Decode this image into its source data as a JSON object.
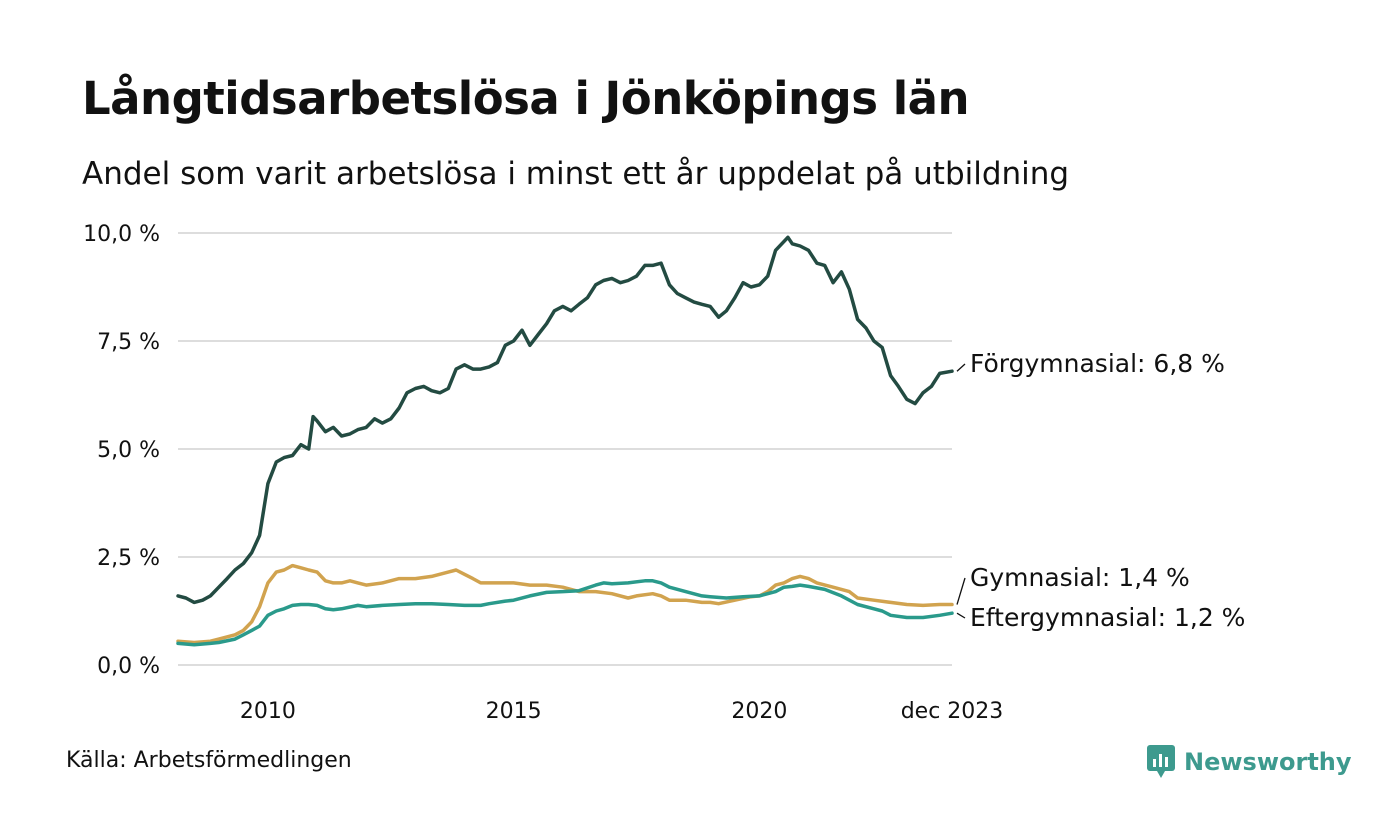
{
  "header": {
    "title": "Långtidsarbetslösa i Jönköpings län",
    "subtitle": "Andel som varit arbetslösa i minst ett år uppdelat på utbildning"
  },
  "footer": {
    "source": "Källa: Arbetsförmedlingen",
    "brand": "Newsworthy"
  },
  "colors": {
    "forgymnasial": "#234b42",
    "gymnasial": "#d1a34f",
    "eftergymnasial": "#2a9a8b",
    "grid": "#dddddd",
    "brand": "#3d9a8e"
  },
  "chart_data": {
    "type": "line",
    "title": "Långtidsarbetslösa i Jönköpings län",
    "xlabel": "",
    "ylabel": "",
    "ylim": [
      0,
      10
    ],
    "xlim": [
      2008.17,
      2023.92
    ],
    "y_ticks": [
      {
        "value": 0,
        "label": "0,0 %"
      },
      {
        "value": 2.5,
        "label": "2,5 %"
      },
      {
        "value": 5,
        "label": "5,0 %"
      },
      {
        "value": 7.5,
        "label": "7,5 %"
      },
      {
        "value": 10,
        "label": "10,0 %"
      }
    ],
    "x_ticks": [
      {
        "value": 2010,
        "label": "2010"
      },
      {
        "value": 2015,
        "label": "2015"
      },
      {
        "value": 2020,
        "label": "2020"
      },
      {
        "value": 2023.92,
        "label": "dec 2023"
      }
    ],
    "grid": true,
    "series": [
      {
        "name": "Förgymnasial",
        "end_label": "Förgymnasial: 6,8 %",
        "points": [
          [
            2008.17,
            1.6
          ],
          [
            2008.33,
            1.55
          ],
          [
            2008.5,
            1.45
          ],
          [
            2008.67,
            1.5
          ],
          [
            2008.83,
            1.6
          ],
          [
            2009.0,
            1.8
          ],
          [
            2009.17,
            2.0
          ],
          [
            2009.33,
            2.2
          ],
          [
            2009.5,
            2.35
          ],
          [
            2009.67,
            2.6
          ],
          [
            2009.83,
            3.0
          ],
          [
            2010.0,
            4.2
          ],
          [
            2010.17,
            4.7
          ],
          [
            2010.33,
            4.8
          ],
          [
            2010.5,
            4.85
          ],
          [
            2010.67,
            5.1
          ],
          [
            2010.83,
            5.0
          ],
          [
            2010.92,
            5.75
          ],
          [
            2011.0,
            5.65
          ],
          [
            2011.17,
            5.4
          ],
          [
            2011.33,
            5.5
          ],
          [
            2011.5,
            5.3
          ],
          [
            2011.67,
            5.35
          ],
          [
            2011.83,
            5.45
          ],
          [
            2012.0,
            5.5
          ],
          [
            2012.17,
            5.7
          ],
          [
            2012.33,
            5.6
          ],
          [
            2012.5,
            5.7
          ],
          [
            2012.67,
            5.95
          ],
          [
            2012.83,
            6.3
          ],
          [
            2013.0,
            6.4
          ],
          [
            2013.17,
            6.45
          ],
          [
            2013.33,
            6.35
          ],
          [
            2013.5,
            6.3
          ],
          [
            2013.67,
            6.4
          ],
          [
            2013.83,
            6.85
          ],
          [
            2014.0,
            6.95
          ],
          [
            2014.17,
            6.85
          ],
          [
            2014.33,
            6.85
          ],
          [
            2014.5,
            6.9
          ],
          [
            2014.67,
            7.0
          ],
          [
            2014.83,
            7.4
          ],
          [
            2015.0,
            7.5
          ],
          [
            2015.17,
            7.75
          ],
          [
            2015.33,
            7.4
          ],
          [
            2015.5,
            7.65
          ],
          [
            2015.67,
            7.9
          ],
          [
            2015.83,
            8.2
          ],
          [
            2016.0,
            8.3
          ],
          [
            2016.17,
            8.2
          ],
          [
            2016.33,
            8.35
          ],
          [
            2016.5,
            8.5
          ],
          [
            2016.67,
            8.8
          ],
          [
            2016.83,
            8.9
          ],
          [
            2017.0,
            8.95
          ],
          [
            2017.17,
            8.85
          ],
          [
            2017.33,
            8.9
          ],
          [
            2017.5,
            9.0
          ],
          [
            2017.67,
            9.25
          ],
          [
            2017.83,
            9.25
          ],
          [
            2018.0,
            9.3
          ],
          [
            2018.17,
            8.8
          ],
          [
            2018.33,
            8.6
          ],
          [
            2018.5,
            8.5
          ],
          [
            2018.67,
            8.4
          ],
          [
            2018.83,
            8.35
          ],
          [
            2019.0,
            8.3
          ],
          [
            2019.17,
            8.05
          ],
          [
            2019.33,
            8.2
          ],
          [
            2019.5,
            8.5
          ],
          [
            2019.67,
            8.85
          ],
          [
            2019.83,
            8.75
          ],
          [
            2020.0,
            8.8
          ],
          [
            2020.17,
            9.0
          ],
          [
            2020.33,
            9.6
          ],
          [
            2020.5,
            9.8
          ],
          [
            2020.58,
            9.9
          ],
          [
            2020.67,
            9.75
          ],
          [
            2020.83,
            9.7
          ],
          [
            2021.0,
            9.6
          ],
          [
            2021.17,
            9.3
          ],
          [
            2021.33,
            9.25
          ],
          [
            2021.5,
            8.85
          ],
          [
            2021.67,
            9.1
          ],
          [
            2021.83,
            8.7
          ],
          [
            2022.0,
            8.0
          ],
          [
            2022.17,
            7.8
          ],
          [
            2022.33,
            7.5
          ],
          [
            2022.5,
            7.35
          ],
          [
            2022.67,
            6.7
          ],
          [
            2022.83,
            6.45
          ],
          [
            2023.0,
            6.15
          ],
          [
            2023.17,
            6.05
          ],
          [
            2023.33,
            6.3
          ],
          [
            2023.5,
            6.45
          ],
          [
            2023.67,
            6.75
          ],
          [
            2023.92,
            6.8
          ]
        ]
      },
      {
        "name": "Gymnasial",
        "end_label": "Gymnasial: 1,4 %",
        "points": [
          [
            2008.17,
            0.55
          ],
          [
            2008.5,
            0.52
          ],
          [
            2008.83,
            0.55
          ],
          [
            2009.0,
            0.6
          ],
          [
            2009.33,
            0.7
          ],
          [
            2009.5,
            0.8
          ],
          [
            2009.67,
            1.0
          ],
          [
            2009.83,
            1.35
          ],
          [
            2010.0,
            1.9
          ],
          [
            2010.17,
            2.15
          ],
          [
            2010.33,
            2.2
          ],
          [
            2010.5,
            2.3
          ],
          [
            2010.67,
            2.25
          ],
          [
            2010.83,
            2.2
          ],
          [
            2011.0,
            2.15
          ],
          [
            2011.17,
            1.95
          ],
          [
            2011.33,
            1.9
          ],
          [
            2011.5,
            1.9
          ],
          [
            2011.67,
            1.95
          ],
          [
            2011.83,
            1.9
          ],
          [
            2012.0,
            1.85
          ],
          [
            2012.33,
            1.9
          ],
          [
            2012.67,
            2.0
          ],
          [
            2013.0,
            2.0
          ],
          [
            2013.33,
            2.05
          ],
          [
            2013.67,
            2.15
          ],
          [
            2013.83,
            2.2
          ],
          [
            2014.0,
            2.1
          ],
          [
            2014.17,
            2.0
          ],
          [
            2014.33,
            1.9
          ],
          [
            2014.5,
            1.9
          ],
          [
            2014.83,
            1.9
          ],
          [
            2015.0,
            1.9
          ],
          [
            2015.33,
            1.85
          ],
          [
            2015.67,
            1.85
          ],
          [
            2016.0,
            1.8
          ],
          [
            2016.17,
            1.75
          ],
          [
            2016.33,
            1.7
          ],
          [
            2016.67,
            1.7
          ],
          [
            2017.0,
            1.65
          ],
          [
            2017.33,
            1.55
          ],
          [
            2017.5,
            1.6
          ],
          [
            2017.83,
            1.65
          ],
          [
            2018.0,
            1.6
          ],
          [
            2018.17,
            1.5
          ],
          [
            2018.5,
            1.5
          ],
          [
            2018.83,
            1.45
          ],
          [
            2019.0,
            1.45
          ],
          [
            2019.17,
            1.42
          ],
          [
            2019.5,
            1.5
          ],
          [
            2019.83,
            1.58
          ],
          [
            2020.0,
            1.6
          ],
          [
            2020.17,
            1.7
          ],
          [
            2020.33,
            1.85
          ],
          [
            2020.5,
            1.9
          ],
          [
            2020.67,
            2.0
          ],
          [
            2020.83,
            2.05
          ],
          [
            2021.0,
            2.0
          ],
          [
            2021.17,
            1.9
          ],
          [
            2021.5,
            1.8
          ],
          [
            2021.83,
            1.7
          ],
          [
            2022.0,
            1.55
          ],
          [
            2022.33,
            1.5
          ],
          [
            2022.67,
            1.45
          ],
          [
            2023.0,
            1.4
          ],
          [
            2023.33,
            1.38
          ],
          [
            2023.67,
            1.4
          ],
          [
            2023.92,
            1.4
          ]
        ]
      },
      {
        "name": "Eftergymnasial",
        "end_label": "Eftergymnasial: 1,2 %",
        "points": [
          [
            2008.17,
            0.5
          ],
          [
            2008.5,
            0.47
          ],
          [
            2008.83,
            0.5
          ],
          [
            2009.0,
            0.52
          ],
          [
            2009.33,
            0.6
          ],
          [
            2009.5,
            0.7
          ],
          [
            2009.67,
            0.8
          ],
          [
            2009.83,
            0.9
          ],
          [
            2010.0,
            1.15
          ],
          [
            2010.17,
            1.25
          ],
          [
            2010.33,
            1.3
          ],
          [
            2010.5,
            1.38
          ],
          [
            2010.67,
            1.4
          ],
          [
            2010.83,
            1.4
          ],
          [
            2011.0,
            1.38
          ],
          [
            2011.17,
            1.3
          ],
          [
            2011.33,
            1.28
          ],
          [
            2011.5,
            1.3
          ],
          [
            2011.83,
            1.38
          ],
          [
            2012.0,
            1.35
          ],
          [
            2012.33,
            1.38
          ],
          [
            2012.67,
            1.4
          ],
          [
            2013.0,
            1.42
          ],
          [
            2013.33,
            1.42
          ],
          [
            2013.67,
            1.4
          ],
          [
            2014.0,
            1.38
          ],
          [
            2014.33,
            1.38
          ],
          [
            2014.5,
            1.42
          ],
          [
            2014.83,
            1.48
          ],
          [
            2015.0,
            1.5
          ],
          [
            2015.33,
            1.6
          ],
          [
            2015.67,
            1.68
          ],
          [
            2016.0,
            1.7
          ],
          [
            2016.33,
            1.72
          ],
          [
            2016.67,
            1.85
          ],
          [
            2016.83,
            1.9
          ],
          [
            2017.0,
            1.88
          ],
          [
            2017.33,
            1.9
          ],
          [
            2017.67,
            1.95
          ],
          [
            2017.83,
            1.95
          ],
          [
            2018.0,
            1.9
          ],
          [
            2018.17,
            1.8
          ],
          [
            2018.5,
            1.7
          ],
          [
            2018.83,
            1.6
          ],
          [
            2019.0,
            1.58
          ],
          [
            2019.33,
            1.55
          ],
          [
            2019.67,
            1.58
          ],
          [
            2020.0,
            1.6
          ],
          [
            2020.33,
            1.7
          ],
          [
            2020.5,
            1.8
          ],
          [
            2020.67,
            1.82
          ],
          [
            2020.83,
            1.85
          ],
          [
            2021.0,
            1.82
          ],
          [
            2021.33,
            1.75
          ],
          [
            2021.67,
            1.6
          ],
          [
            2022.0,
            1.4
          ],
          [
            2022.33,
            1.3
          ],
          [
            2022.5,
            1.25
          ],
          [
            2022.67,
            1.15
          ],
          [
            2023.0,
            1.1
          ],
          [
            2023.33,
            1.1
          ],
          [
            2023.67,
            1.15
          ],
          [
            2023.92,
            1.2
          ]
        ]
      }
    ]
  }
}
